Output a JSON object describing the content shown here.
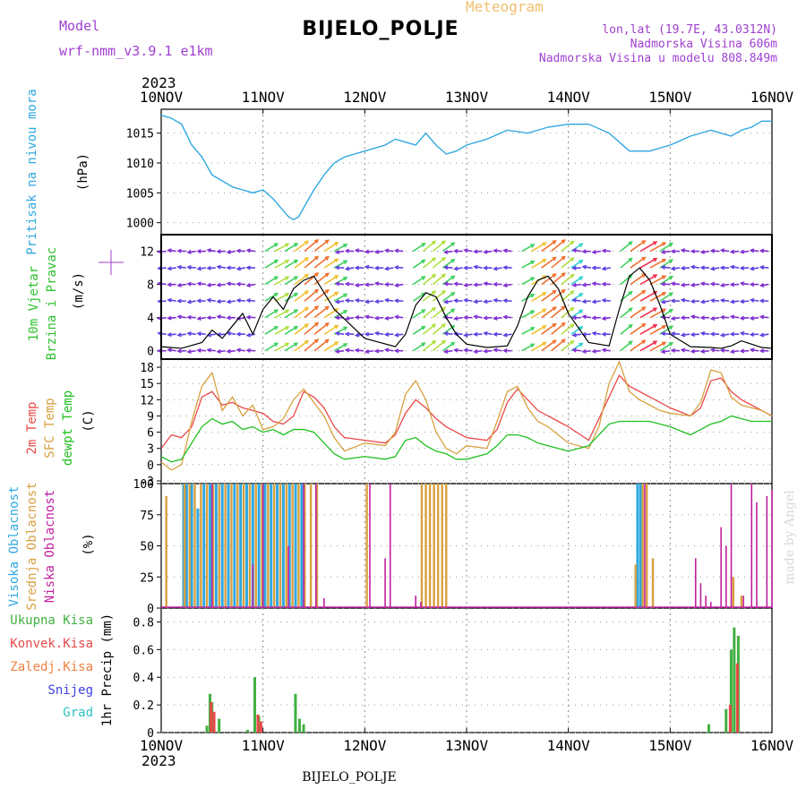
{
  "header": {
    "title": "BIJELO_POLJE",
    "subtitle": "Meteogram",
    "model_label": "Model",
    "model_name": "wrf-nmm_v3.9.1 e1km",
    "location_coords": "lon,lat (19.7E, 43.0312N)",
    "altitude": "Nadmorska Visina 606m",
    "model_altitude": "Nadmorska Visina u modelu 808.849m",
    "bottom_label": "BIJELO_POLJE",
    "watermark": "made by Angel"
  },
  "colors": {
    "pressure": "#30a8e0",
    "wind_label": "#30c030",
    "temp2m": "#e84848",
    "sfc_temp": "#d8a040",
    "dewpoint": "#20c020",
    "high_cloud": "#30a8e0",
    "mid_cloud": "#d8a040",
    "low_cloud": "#c020a0",
    "precip_total": "#40b040",
    "precip_conv": "#e84848",
    "precip_frozen": "#f08040",
    "snow": "#4040e0",
    "grad": "#30c0c0",
    "purple_text": "#a040d0"
  },
  "chart_data": [
    {
      "type": "line",
      "panel": "pressure",
      "x_axis": {
        "ticks": [
          "10NOV",
          "11NOV",
          "12NOV",
          "13NOV",
          "14NOV",
          "15NOV",
          "16NOV"
        ],
        "year": "2023",
        "range_days": [
          0,
          6
        ]
      },
      "ylabel": "(hPa)",
      "series_label": "Pritisak na nivou mora",
      "ylim": [
        998,
        1019
      ],
      "yticks": [
        1000,
        1005,
        1010,
        1015
      ],
      "series": [
        {
          "x": [
            0,
            0.1,
            0.2,
            0.3,
            0.4,
            0.5,
            0.6,
            0.7,
            0.8,
            0.9,
            1.0,
            1.1,
            1.15,
            1.2,
            1.25,
            1.3,
            1.35,
            1.4,
            1.5,
            1.6,
            1.7,
            1.8,
            1.9,
            2.0,
            2.1,
            2.2,
            2.3,
            2.4,
            2.5,
            2.6,
            2.7,
            2.8,
            2.9,
            3.0,
            3.2,
            3.4,
            3.6,
            3.8,
            4.0,
            4.2,
            4.4,
            4.5,
            4.6,
            4.8,
            5.0,
            5.2,
            5.4,
            5.5,
            5.6,
            5.7,
            5.8,
            5.9,
            6.0
          ],
          "values": [
            1018,
            1017.5,
            1016.5,
            1013,
            1011,
            1008,
            1007,
            1006,
            1005.5,
            1005,
            1005.5,
            1004,
            1003,
            1002,
            1001,
            1000.5,
            1001,
            1002.5,
            1005.5,
            1008,
            1010,
            1011,
            1011.5,
            1012,
            1012.5,
            1013,
            1014,
            1013.5,
            1013,
            1015,
            1013,
            1011.5,
            1012,
            1013,
            1014,
            1015.5,
            1015,
            1016,
            1016.5,
            1016.5,
            1015,
            1013.5,
            1012,
            1012,
            1013,
            1014.5,
            1015.5,
            1015,
            1014.5,
            1015.5,
            1016,
            1017,
            1017
          ]
        }
      ]
    },
    {
      "type": "line",
      "panel": "wind",
      "ylabel": "(m/s)",
      "series_label": [
        "10m Vjetar",
        "Brzina i Pravac"
      ],
      "ylim": [
        -1,
        14
      ],
      "yticks": [
        0,
        4,
        8,
        12
      ],
      "series": [
        {
          "name": "wind speed",
          "x": [
            0.0,
            0.2,
            0.4,
            0.5,
            0.6,
            0.7,
            0.8,
            0.9,
            1.0,
            1.1,
            1.2,
            1.3,
            1.4,
            1.5,
            1.6,
            1.7,
            2.0,
            2.3,
            2.4,
            2.5,
            2.6,
            2.7,
            2.8,
            2.9,
            3.0,
            3.2,
            3.4,
            3.5,
            3.6,
            3.7,
            3.8,
            3.9,
            4.0,
            4.2,
            4.4,
            4.5,
            4.6,
            4.7,
            4.8,
            4.9,
            5.0,
            5.2,
            5.4,
            5.5,
            5.6,
            5.7,
            5.8,
            5.9,
            6.0
          ],
          "values": [
            0.5,
            0.3,
            1.0,
            2.5,
            1.5,
            3.0,
            4.5,
            2.0,
            5.0,
            6.5,
            5.0,
            7.5,
            8.5,
            9.0,
            7.0,
            5.0,
            1.5,
            0.5,
            2.0,
            5.5,
            7.0,
            6.5,
            4.0,
            2.0,
            0.8,
            0.4,
            0.6,
            3.0,
            6.5,
            8.5,
            9.0,
            7.5,
            4.5,
            1.0,
            0.6,
            5.0,
            9.0,
            10.0,
            8.5,
            5.5,
            2.0,
            0.5,
            0.4,
            0.3,
            0.6,
            1.2,
            0.8,
            0.4,
            0.3
          ]
        }
      ]
    },
    {
      "type": "line",
      "panel": "temperature",
      "ylabel": "(C)",
      "series_label": [
        "2m Temp",
        "SFC Temp",
        "dewpt Temp"
      ],
      "ylim": [
        -3.5,
        19.5
      ],
      "yticks": [
        -3,
        0,
        3,
        6,
        9,
        12,
        15,
        18
      ],
      "x": [
        0.0,
        0.1,
        0.2,
        0.3,
        0.4,
        0.5,
        0.6,
        0.7,
        0.8,
        0.9,
        1.0,
        1.1,
        1.2,
        1.3,
        1.4,
        1.5,
        1.6,
        1.7,
        1.8,
        2.0,
        2.2,
        2.3,
        2.4,
        2.5,
        2.6,
        2.7,
        2.8,
        2.9,
        3.0,
        3.2,
        3.3,
        3.4,
        3.5,
        3.6,
        3.7,
        3.8,
        3.9,
        4.0,
        4.2,
        4.3,
        4.4,
        4.5,
        4.6,
        4.7,
        4.8,
        4.9,
        5.0,
        5.2,
        5.3,
        5.4,
        5.5,
        5.6,
        5.7,
        5.8,
        5.9,
        6.0
      ],
      "series": [
        {
          "name": "2m Temp",
          "values": [
            3.0,
            5.5,
            5.0,
            7.0,
            12.5,
            13.5,
            11.0,
            11.5,
            10.5,
            10.0,
            9.5,
            8.0,
            7.5,
            9.0,
            13.5,
            12.5,
            10.5,
            7.0,
            5.0,
            4.5,
            4.0,
            5.5,
            9.5,
            12.0,
            10.5,
            8.5,
            7.0,
            6.0,
            5.0,
            4.5,
            6.5,
            11.5,
            14.0,
            12.0,
            10.0,
            9.0,
            8.0,
            7.0,
            4.5,
            8.5,
            12.5,
            16.5,
            14.5,
            13.5,
            12.5,
            11.5,
            10.5,
            9.0,
            10.5,
            15.5,
            16.0,
            13.5,
            12.0,
            11.0,
            10.0,
            9.0
          ]
        },
        {
          "name": "SFC Temp",
          "values": [
            0.5,
            -1.0,
            0.0,
            8.0,
            14.5,
            17.0,
            10.0,
            12.5,
            9.0,
            11.0,
            6.5,
            7.0,
            8.5,
            12.0,
            14.0,
            11.5,
            9.0,
            5.0,
            2.5,
            4.0,
            3.5,
            6.0,
            13.0,
            15.5,
            12.0,
            6.0,
            3.0,
            2.0,
            3.5,
            3.0,
            8.0,
            13.5,
            14.5,
            10.5,
            8.0,
            7.0,
            5.5,
            4.0,
            3.0,
            7.0,
            15.0,
            19.0,
            13.5,
            12.0,
            11.0,
            10.0,
            9.5,
            9.0,
            11.5,
            17.5,
            17.0,
            12.5,
            11.0,
            10.5,
            10.0,
            9.0
          ]
        },
        {
          "name": "dewpt Temp",
          "values": [
            1.5,
            0.5,
            1.0,
            4.0,
            7.0,
            8.5,
            7.5,
            8.0,
            6.5,
            7.0,
            6.0,
            6.5,
            5.5,
            6.5,
            6.5,
            6.0,
            4.0,
            2.0,
            1.0,
            1.5,
            1.0,
            1.5,
            4.5,
            5.0,
            3.5,
            2.5,
            2.0,
            1.0,
            1.0,
            2.0,
            3.5,
            5.5,
            5.5,
            5.0,
            4.0,
            3.5,
            3.0,
            2.5,
            3.5,
            5.5,
            7.5,
            8.0,
            8.0,
            8.0,
            8.0,
            7.5,
            7.0,
            5.5,
            6.5,
            7.5,
            8.0,
            9.0,
            8.5,
            8.0,
            8.0,
            8.0
          ]
        }
      ]
    },
    {
      "type": "bar",
      "panel": "cloud",
      "ylabel": "(%)",
      "series_label": [
        "Visoka Oblacnost",
        "Srednja Oblacnost",
        "Niska Oblacnost"
      ],
      "ylim": [
        0,
        100
      ],
      "yticks": [
        0,
        25,
        50,
        75,
        100
      ],
      "series": [
        {
          "name": "Visoka Oblacnost",
          "x": [
            0.22,
            0.25,
            0.3,
            0.36,
            0.42,
            0.48,
            0.54,
            0.6,
            0.66,
            0.72,
            0.78,
            0.84,
            0.9,
            0.96,
            1.02,
            1.08,
            1.14,
            1.2,
            1.26,
            1.32,
            1.38,
            4.68,
            4.71
          ],
          "values": [
            100,
            100,
            100,
            80,
            100,
            100,
            100,
            100,
            100,
            100,
            100,
            100,
            100,
            100,
            100,
            100,
            100,
            100,
            100,
            100,
            100,
            100,
            100
          ]
        },
        {
          "name": "Srednja Oblacnost",
          "x": [
            0.05,
            0.23,
            0.28,
            0.33,
            0.39,
            0.45,
            0.51,
            0.57,
            0.63,
            0.69,
            0.75,
            0.81,
            0.87,
            0.93,
            0.99,
            1.05,
            1.11,
            1.17,
            1.23,
            1.29,
            1.35,
            1.41,
            1.47,
            1.53,
            2.02,
            2.56,
            2.6,
            2.64,
            2.68,
            2.72,
            2.76,
            2.8,
            4.66,
            4.73,
            4.77,
            4.83,
            5.62,
            5.7
          ],
          "values": [
            90,
            100,
            100,
            100,
            100,
            100,
            100,
            100,
            100,
            100,
            100,
            100,
            100,
            100,
            100,
            100,
            100,
            100,
            100,
            100,
            100,
            100,
            100,
            100,
            100,
            100,
            100,
            100,
            100,
            100,
            100,
            100,
            35,
            100,
            100,
            40,
            25,
            10
          ]
        },
        {
          "name": "Niska Oblacnost",
          "x": [
            0.5,
            0.9,
            1.0,
            1.25,
            1.4,
            1.52,
            1.6,
            2.05,
            2.2,
            2.25,
            2.5,
            2.55,
            4.75,
            5.25,
            5.3,
            5.35,
            5.4,
            5.5,
            5.55,
            5.6,
            5.72,
            5.8,
            5.85,
            5.95,
            6.0
          ],
          "values": [
            100,
            35,
            100,
            50,
            100,
            100,
            8,
            100,
            40,
            100,
            10,
            5,
            100,
            40,
            20,
            10,
            5,
            65,
            50,
            100,
            10,
            100,
            85,
            90,
            95
          ]
        }
      ]
    },
    {
      "type": "bar",
      "panel": "precipitation",
      "ylabel": "1hr Precip (mm)",
      "series_label": [
        "Ukupna Kisa",
        "Konvek.Kisa",
        "Zaledj.Kisa",
        "Snijeg",
        "Grad"
      ],
      "ylim": [
        0,
        0.9
      ],
      "yticks": [
        0,
        0.2,
        0.4,
        0.6,
        0.8
      ],
      "series": [
        {
          "name": "Ukupna Kisa",
          "x": [
            0.45,
            0.48,
            0.5,
            0.57,
            0.85,
            0.92,
            0.96,
            1.32,
            1.36,
            1.4,
            5.38,
            5.55,
            5.6,
            5.63,
            5.67
          ],
          "values": [
            0.05,
            0.28,
            0.22,
            0.1,
            0.02,
            0.4,
            0.12,
            0.28,
            0.1,
            0.06,
            0.06,
            0.17,
            0.6,
            0.76,
            0.7
          ]
        },
        {
          "name": "Konvek.Kisa",
          "x": [
            0.48,
            0.51,
            0.94,
            0.97,
            5.58,
            5.65
          ],
          "values": [
            0.22,
            0.15,
            0.13,
            0.08,
            0.2,
            0.5
          ]
        }
      ]
    }
  ]
}
